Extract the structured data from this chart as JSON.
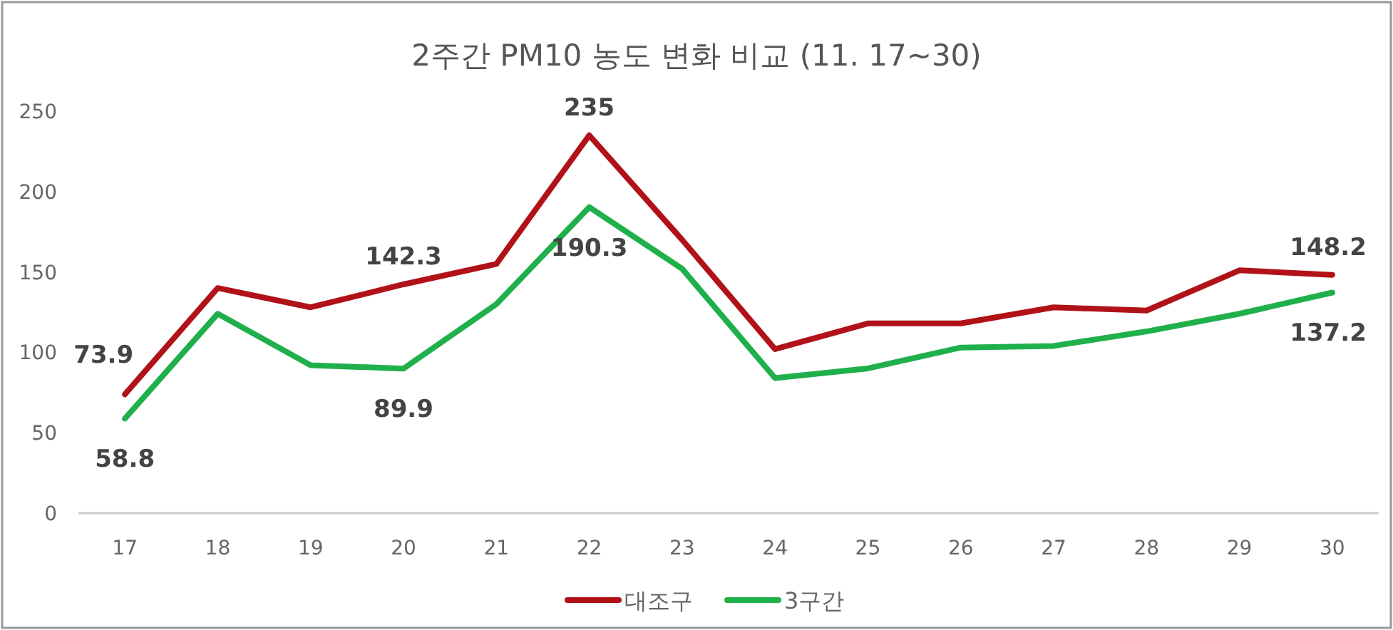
{
  "chart_data": {
    "type": "line",
    "title": "2주간 PM10 농도 변화 비교 (11. 17~30)",
    "categories": [
      "17",
      "18",
      "19",
      "20",
      "21",
      "22",
      "23",
      "24",
      "25",
      "26",
      "27",
      "28",
      "29",
      "30"
    ],
    "series": [
      {
        "name": "대조구",
        "color": "#b01218",
        "values": [
          73.9,
          140,
          128,
          142.3,
          155,
          235,
          170,
          102,
          118,
          118,
          128,
          126,
          151,
          148.2
        ],
        "value_labels": [
          "73.9",
          null,
          null,
          "142.3",
          null,
          "235",
          null,
          null,
          null,
          null,
          null,
          null,
          null,
          "148.2"
        ]
      },
      {
        "name": "3구간",
        "color": "#1fb04c",
        "values": [
          58.8,
          124,
          92,
          89.9,
          130,
          190.3,
          152,
          84,
          90,
          103,
          104,
          113,
          124,
          137.2
        ],
        "value_labels": [
          "58.8",
          null,
          null,
          "89.9",
          null,
          "190.3",
          null,
          null,
          null,
          null,
          null,
          null,
          null,
          "137.2"
        ]
      }
    ],
    "ylim": [
      0,
      250
    ],
    "yticks": [
      0,
      50,
      100,
      150,
      200,
      250
    ],
    "grid": false,
    "legend": "bottom",
    "marker": "none",
    "line_style": "solid"
  }
}
